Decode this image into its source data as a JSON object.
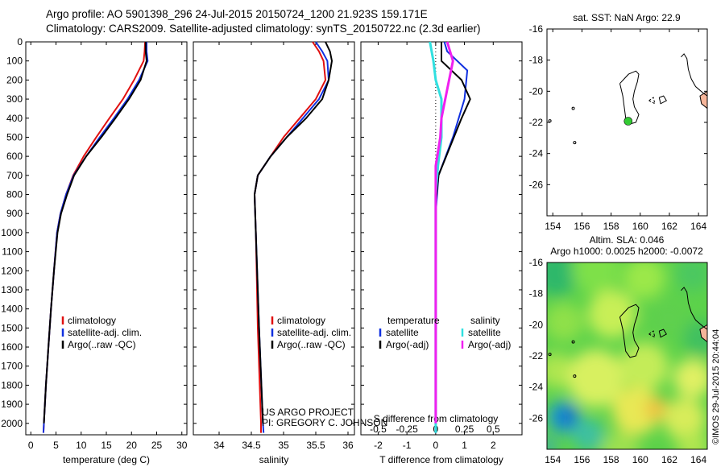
{
  "header": {
    "line1": "Argo profile: AO 5901398_296 24-Jul-2015 20150724_1200 21.923S 159.171E",
    "line2": "Climatology: CARS2009. Satellite-adjusted climatology: synTS_20150722.nc (2.3d earlier)"
  },
  "watermark": "©IMOS 29-Jul-2015 20:44:04",
  "credit": {
    "line1": "US ARGO PROJECT",
    "line2": "PI: GREGORY C. JOHNSON"
  },
  "depth_ticks": [
    0,
    100,
    200,
    300,
    400,
    500,
    600,
    700,
    800,
    900,
    1000,
    1100,
    1200,
    1300,
    1400,
    1500,
    1600,
    1700,
    1800,
    1900,
    2000
  ],
  "colors": {
    "climatology": "#e01010",
    "satellite": "#1030e0",
    "argo": "#000000",
    "salinity_sat": "#30e0e0",
    "salinity_argo": "#f020f0",
    "land": "#f5b59a",
    "float": "#33cc33"
  },
  "chart_data": [
    {
      "type": "line",
      "id": "temperature",
      "xlabel": "temperature (deg C)",
      "xlim": [
        -1,
        31
      ],
      "xticks": [
        0,
        5,
        10,
        15,
        20,
        25,
        30
      ],
      "ylim": [
        2060,
        0
      ],
      "legend": {
        "placement": "bottom-center",
        "entries": [
          "climatology",
          "satellite-adj. clim.",
          "Argo(..raw -QC)"
        ]
      },
      "series": [
        {
          "name": "climatology",
          "color": "#e01010",
          "points": [
            [
              22.7,
              0
            ],
            [
              22.6,
              50
            ],
            [
              22.4,
              100
            ],
            [
              20.5,
              200
            ],
            [
              18.3,
              300
            ],
            [
              15.6,
              400
            ],
            [
              13,
              500
            ],
            [
              10.5,
              600
            ],
            [
              8.4,
              700
            ],
            [
              7,
              800
            ],
            [
              5.9,
              900
            ],
            [
              5.2,
              1000
            ],
            [
              4.6,
              1200
            ],
            [
              4,
              1400
            ],
            [
              3.5,
              1600
            ],
            [
              3,
              1800
            ],
            [
              2.6,
              2000
            ],
            [
              2.5,
              2050
            ]
          ]
        },
        {
          "name": "satellite-adj. clim.",
          "color": "#1030e0",
          "points": [
            [
              23,
              0
            ],
            [
              23,
              50
            ],
            [
              23.2,
              100
            ],
            [
              21.5,
              200
            ],
            [
              19.2,
              300
            ],
            [
              16.5,
              400
            ],
            [
              13.7,
              500
            ],
            [
              11,
              600
            ],
            [
              8.5,
              700
            ],
            [
              7,
              800
            ],
            [
              5.9,
              900
            ],
            [
              5.2,
              1000
            ],
            [
              4.6,
              1200
            ],
            [
              4,
              1400
            ],
            [
              3.5,
              1600
            ],
            [
              3,
              1800
            ],
            [
              2.6,
              2000
            ],
            [
              2.5,
              2050
            ]
          ]
        },
        {
          "name": "Argo(..raw -QC)",
          "color": "#000000",
          "points": [
            [
              22.8,
              0
            ],
            [
              22.8,
              50
            ],
            [
              23,
              100
            ],
            [
              21.8,
              200
            ],
            [
              19.5,
              300
            ],
            [
              16.8,
              400
            ],
            [
              14,
              500
            ],
            [
              11,
              600
            ],
            [
              8.6,
              700
            ],
            [
              7.2,
              800
            ],
            [
              6,
              900
            ],
            [
              5.3,
              1000
            ],
            [
              4.6,
              1200
            ],
            [
              4,
              1400
            ],
            [
              3.5,
              1600
            ],
            [
              3,
              1800
            ],
            [
              2.6,
              2000
            ]
          ]
        }
      ]
    },
    {
      "type": "line",
      "id": "salinity",
      "xlabel": "salinity",
      "xlim": [
        33.6,
        36.1
      ],
      "xticks": [
        34,
        34.5,
        35,
        35.5,
        36
      ],
      "ylim": [
        2060,
        0
      ],
      "legend": {
        "placement": "bottom-center",
        "entries": [
          "climatology",
          "satellite-adj. clim.",
          "Argo(..raw -QC)"
        ]
      },
      "series": [
        {
          "name": "climatology",
          "color": "#e01010",
          "points": [
            [
              35.45,
              0
            ],
            [
              35.55,
              50
            ],
            [
              35.62,
              100
            ],
            [
              35.65,
              200
            ],
            [
              35.5,
              300
            ],
            [
              35.25,
              400
            ],
            [
              35,
              500
            ],
            [
              34.8,
              600
            ],
            [
              34.6,
              700
            ],
            [
              34.55,
              800
            ],
            [
              34.56,
              900
            ],
            [
              34.57,
              1000
            ],
            [
              34.6,
              1500
            ],
            [
              34.65,
              2000
            ],
            [
              34.65,
              2050
            ]
          ]
        },
        {
          "name": "satellite-adj. clim.",
          "color": "#1030e0",
          "points": [
            [
              35.5,
              0
            ],
            [
              35.6,
              50
            ],
            [
              35.68,
              100
            ],
            [
              35.7,
              200
            ],
            [
              35.55,
              300
            ],
            [
              35.3,
              400
            ],
            [
              35.05,
              500
            ],
            [
              34.8,
              600
            ],
            [
              34.6,
              700
            ],
            [
              34.55,
              800
            ],
            [
              34.56,
              900
            ],
            [
              34.57,
              1000
            ],
            [
              34.62,
              1500
            ],
            [
              34.68,
              2000
            ],
            [
              34.69,
              2050
            ]
          ]
        },
        {
          "name": "Argo(..raw -QC)",
          "color": "#000000",
          "points": [
            [
              35.65,
              0
            ],
            [
              35.72,
              50
            ],
            [
              35.75,
              100
            ],
            [
              35.7,
              200
            ],
            [
              35.6,
              300
            ],
            [
              35.35,
              400
            ],
            [
              35.05,
              500
            ],
            [
              34.8,
              600
            ],
            [
              34.6,
              700
            ],
            [
              34.55,
              800
            ],
            [
              34.56,
              900
            ],
            [
              34.57,
              1000
            ],
            [
              34.62,
              1500
            ],
            [
              34.68,
              2000
            ]
          ]
        }
      ]
    },
    {
      "type": "line",
      "id": "difference",
      "xlabel": "T difference from climatology",
      "xlabel_top": "S difference from climatology",
      "xlim_T": [
        -2.6,
        3
      ],
      "xticks_T": [
        -2,
        -1,
        0,
        1,
        2
      ],
      "xlim_S": [
        -0.65,
        0.75
      ],
      "xticks_S": [
        -0.5,
        -0.25,
        0,
        0.25,
        0.5
      ],
      "xticklabels_S": [
        "-0.5",
        "-0.25",
        "0",
        "0.25",
        "0.5"
      ],
      "ylim": [
        2060,
        0
      ],
      "legend": {
        "placement": "center",
        "titles": [
          "temperature",
          "salinity"
        ],
        "entries_left": [
          "satellite",
          "Argo(-adj)"
        ],
        "entries_right": [
          "satellite",
          "Argo(-adj)"
        ]
      },
      "series": [
        {
          "name": "temperature satellite",
          "axis": "T",
          "color": "#1030e0",
          "points": [
            [
              0.3,
              0
            ],
            [
              0.4,
              50
            ],
            [
              1.1,
              150
            ],
            [
              1,
              300
            ],
            [
              0.6,
              500
            ],
            [
              0.1,
              700
            ],
            [
              0,
              900
            ],
            [
              0,
              2050
            ]
          ]
        },
        {
          "name": "temperature Argo(-adj)",
          "axis": "T",
          "color": "#000000",
          "points": [
            [
              0.2,
              0
            ],
            [
              0.2,
              100
            ],
            [
              0.9,
              200
            ],
            [
              1.2,
              300
            ],
            [
              0.9,
              400
            ],
            [
              0.5,
              550
            ],
            [
              0.1,
              700
            ],
            [
              0,
              850
            ],
            [
              0,
              2000
            ]
          ]
        },
        {
          "name": "salinity satellite",
          "axis": "S",
          "color": "#30e0e0",
          "points": [
            [
              -0.05,
              0
            ],
            [
              -0.02,
              100
            ],
            [
              0,
              200
            ],
            [
              0.05,
              300
            ],
            [
              0.05,
              500
            ],
            [
              0.02,
              650
            ],
            [
              0,
              800
            ],
            [
              0,
              2050
            ]
          ]
        },
        {
          "name": "salinity Argo(-adj)",
          "axis": "S",
          "color": "#f020f0",
          "points": [
            [
              0.1,
              0
            ],
            [
              0.15,
              100
            ],
            [
              0.1,
              250
            ],
            [
              0.05,
              400
            ],
            [
              0.04,
              500
            ],
            [
              0,
              650
            ],
            [
              0,
              900
            ],
            [
              0,
              2000
            ]
          ]
        }
      ]
    },
    {
      "type": "map",
      "id": "sst_map",
      "title": "sat. SST: NaN Argo: 22.9",
      "xlim": [
        153.6,
        164.6
      ],
      "ylim": [
        -28,
        -16
      ],
      "xticks": [
        154,
        156,
        158,
        160,
        162,
        164
      ],
      "yticks": [
        -16,
        -18,
        -20,
        -22,
        -24,
        -26
      ],
      "float_position": [
        159.171,
        -21.923
      ]
    },
    {
      "type": "heatmap",
      "id": "sla_map",
      "title_line1": "Altim. SLA: 0.046",
      "title_line2": "Argo h1000: 0.0025 h2000: -0.0072",
      "xlim": [
        153.6,
        164.6
      ],
      "ylim": [
        -28,
        -16
      ],
      "xticks": [
        154,
        156,
        158,
        160,
        162,
        164
      ],
      "yticks": [
        -16,
        -18,
        -20,
        -22,
        -24,
        -26
      ]
    }
  ]
}
